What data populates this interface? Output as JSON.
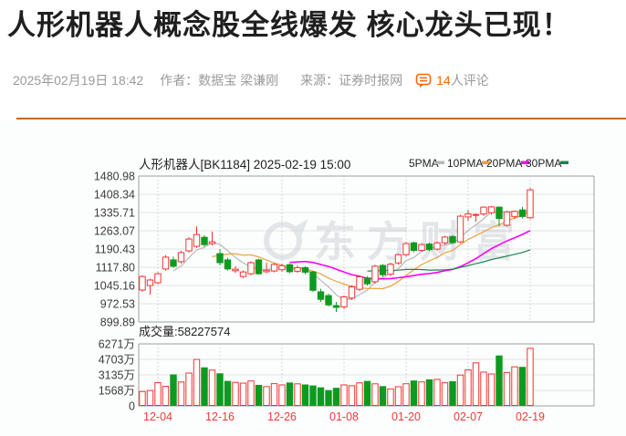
{
  "article": {
    "title": "人形机器人概念股全线爆发 核心龙头已现！",
    "date": "2025年02月19日 18:42",
    "author_label": "作者：",
    "author": "数据宝 梁谦刚",
    "source_label": "来源：",
    "source": "证券时报网",
    "comments_count": "14",
    "comments_suffix": "人评论",
    "comment_icon": "comment-bubble-icon"
  },
  "colors": {
    "headline": "#1f1f1f",
    "meta_gray": "#9a9a9a",
    "accent_orange": "#ff6600",
    "divider": "#c2672c",
    "candle_up": "#f43333",
    "candle_down": "#0e9a20",
    "date_label": "#f03a3a",
    "grid_light": "#e3e3e3",
    "grid_frame": "#9e9e9e",
    "grid_dotted": "#c9c9c9",
    "tick_text": "#3c3c3c",
    "watermark": "#ccd1d6"
  },
  "chart_data": {
    "type": "candlestick",
    "title": "人形机器人[BK1184] 2025-02-19 15:00",
    "watermark": "东方财富",
    "legend": [
      {
        "label": "5PMA",
        "color": "#b8b8b8"
      },
      {
        "label": "10PMA",
        "color": "#f0a13a"
      },
      {
        "label": "20PMA",
        "color": "#ff00ff"
      },
      {
        "label": "30PMA",
        "color": "#15854d"
      }
    ],
    "ma_periods": [
      5,
      10,
      20,
      30
    ],
    "y_ticks": [
      "1480.98",
      "1408.34",
      "1335.71",
      "1263.07",
      "1190.43",
      "1117.80",
      "1045.16",
      "972.53",
      "899.89"
    ],
    "price_max": 1480.98,
    "price_min": 899.89,
    "volume_label": "成交量:58227574",
    "volume_ticks": [
      "6271万",
      "4703万",
      "3135万",
      "1568万",
      "0"
    ],
    "volume_max_wan": 6271,
    "x_labels": [
      {
        "label": "12-04",
        "index": 2
      },
      {
        "label": "12-16",
        "index": 10
      },
      {
        "label": "12-26",
        "index": 18
      },
      {
        "label": "01-08",
        "index": 26
      },
      {
        "label": "01-20",
        "index": 34
      },
      {
        "label": "02-07",
        "index": 42
      },
      {
        "label": "02-19",
        "index": 50
      }
    ],
    "candles": [
      [
        1027,
        1086,
        1020,
        1081
      ],
      [
        1045,
        1072,
        1009,
        1067
      ],
      [
        1056,
        1098,
        1050,
        1092
      ],
      [
        1111,
        1166,
        1104,
        1158
      ],
      [
        1147,
        1160,
        1115,
        1122
      ],
      [
        1140,
        1183,
        1133,
        1176
      ],
      [
        1183,
        1238,
        1176,
        1230
      ],
      [
        1201,
        1281,
        1195,
        1248
      ],
      [
        1237,
        1245,
        1200,
        1208
      ],
      [
        1212,
        1260,
        1205,
        1219
      ],
      [
        1172,
        1190,
        1125,
        1136
      ],
      [
        1147,
        1155,
        1105,
        1111
      ],
      [
        1104,
        1122,
        1095,
        1110
      ],
      [
        1081,
        1105,
        1075,
        1099
      ],
      [
        1092,
        1142,
        1086,
        1136
      ],
      [
        1147,
        1152,
        1088,
        1092
      ],
      [
        1100,
        1136,
        1094,
        1106
      ],
      [
        1103,
        1134,
        1098,
        1129
      ],
      [
        1108,
        1132,
        1100,
        1124
      ],
      [
        1128,
        1133,
        1094,
        1100
      ],
      [
        1102,
        1125,
        1096,
        1116
      ],
      [
        1116,
        1122,
        1090,
        1098
      ],
      [
        1099,
        1104,
        1020,
        1026
      ],
      [
        1020,
        1032,
        980,
        990
      ],
      [
        1005,
        1012,
        962,
        968
      ],
      [
        965,
        980,
        940,
        958
      ],
      [
        960,
        1005,
        952,
        1000
      ],
      [
        995,
        1046,
        988,
        1040
      ],
      [
        1030,
        1086,
        1024,
        1080
      ],
      [
        1075,
        1082,
        1045,
        1052
      ],
      [
        1060,
        1128,
        1052,
        1122
      ],
      [
        1125,
        1130,
        1080,
        1088
      ],
      [
        1090,
        1136,
        1082,
        1130
      ],
      [
        1135,
        1172,
        1128,
        1168
      ],
      [
        1168,
        1218,
        1160,
        1212
      ],
      [
        1215,
        1220,
        1178,
        1185
      ],
      [
        1185,
        1214,
        1180,
        1208
      ],
      [
        1210,
        1216,
        1182,
        1188
      ],
      [
        1190,
        1220,
        1184,
        1215
      ],
      [
        1215,
        1243,
        1208,
        1238
      ],
      [
        1240,
        1246,
        1210,
        1216
      ],
      [
        1219,
        1326,
        1214,
        1321
      ],
      [
        1318,
        1345,
        1302,
        1330
      ],
      [
        1328,
        1332,
        1299,
        1328
      ],
      [
        1330,
        1360,
        1322,
        1357
      ],
      [
        1335,
        1362,
        1328,
        1358
      ],
      [
        1357,
        1360,
        1281,
        1312
      ],
      [
        1285,
        1342,
        1280,
        1338
      ],
      [
        1320,
        1344,
        1310,
        1340
      ],
      [
        1346,
        1358,
        1312,
        1320
      ],
      [
        1315,
        1432,
        1310,
        1426
      ]
    ],
    "volumes_wan": [
      1450,
      1560,
      2350,
      1980,
      3140,
      2420,
      3320,
      4700,
      3850,
      3620,
      3250,
      2480,
      2380,
      2300,
      2520,
      2080,
      1950,
      2250,
      2120,
      2320,
      2230,
      2120,
      2020,
      1830,
      1550,
      1780,
      2120,
      2040,
      2330,
      2480,
      2230,
      1950,
      1720,
      1940,
      2240,
      2520,
      2430,
      2640,
      2680,
      2340,
      2450,
      3120,
      3640,
      4350,
      3420,
      3230,
      5050,
      3380,
      3950,
      3900,
      5823
    ]
  }
}
